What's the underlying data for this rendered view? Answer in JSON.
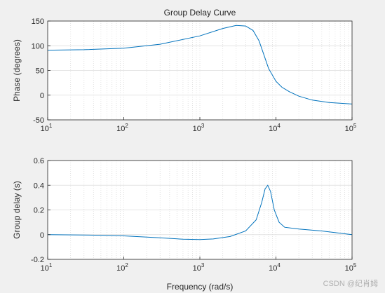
{
  "watermark": "CSDN @纪肖姆",
  "colors": {
    "background": "#f0f0f0",
    "axes_bg": "#ffffff",
    "line": "#0072bd",
    "grid": "#dcdcdc",
    "axis": "#262626"
  },
  "chart_data": [
    {
      "type": "line",
      "title": "Group Delay Curve",
      "xlabel": "",
      "ylabel": "Phase (degrees)",
      "xscale": "log",
      "xlim": [
        10,
        100000
      ],
      "ylim": [
        -50,
        150
      ],
      "x_tick_exponents": [
        "1",
        "2",
        "3",
        "4",
        "5"
      ],
      "x_tick_base": "10",
      "y_ticks": [
        -50,
        0,
        50,
        100,
        150
      ],
      "grid": "on (major and minor on x)",
      "series": [
        {
          "x": [
            10,
            30,
            100,
            300,
            1000,
            2000,
            3000,
            4000,
            5000,
            6000,
            7000,
            8000,
            10000,
            12000,
            15000,
            20000,
            30000,
            50000,
            100000
          ],
          "y": [
            91,
            92,
            95,
            103,
            120,
            135,
            141,
            140,
            131,
            110,
            80,
            54,
            28,
            16,
            7,
            -2,
            -10,
            -15,
            -18
          ]
        }
      ]
    },
    {
      "type": "line",
      "title": "",
      "xlabel": "Frequency (rad/s)",
      "ylabel": "Group delay (s)",
      "xscale": "log",
      "xlim": [
        10,
        100000
      ],
      "ylim": [
        -0.2,
        0.6
      ],
      "x_tick_exponents": [
        "1",
        "2",
        "3",
        "4",
        "5"
      ],
      "x_tick_base": "10",
      "y_ticks": [
        -0.2,
        0,
        0.2,
        0.4,
        0.6
      ],
      "grid": "on (major and minor on x)",
      "series": [
        {
          "x": [
            10,
            50,
            100,
            300,
            600,
            1000,
            1500,
            2500,
            4000,
            5500,
            6500,
            7200,
            7800,
            8500,
            9500,
            11000,
            13000,
            20000,
            40000,
            100000
          ],
          "y": [
            0.0,
            -0.005,
            -0.01,
            -0.025,
            -0.037,
            -0.04,
            -0.035,
            -0.015,
            0.03,
            0.12,
            0.26,
            0.37,
            0.4,
            0.35,
            0.2,
            0.1,
            0.06,
            0.045,
            0.03,
            0.0
          ]
        }
      ]
    }
  ]
}
